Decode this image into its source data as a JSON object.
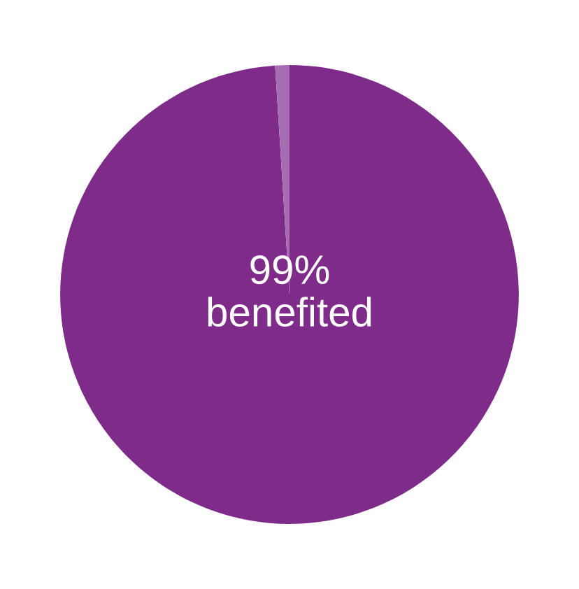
{
  "chart_data": {
    "type": "pie",
    "categories": [
      "benefited",
      null
    ],
    "values": [
      99,
      1
    ],
    "colors": [
      "#7f2b8a",
      "#a76db3"
    ],
    "value_labels": [
      "99%",
      null
    ]
  }
}
